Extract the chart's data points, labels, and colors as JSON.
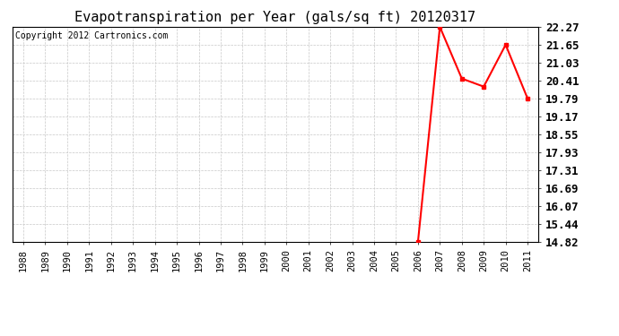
{
  "title": "Evapotranspiration per Year (gals/sq ft) 20120317",
  "copyright_text": "Copyright 2012 Cartronics.com",
  "x_years": [
    1988,
    1989,
    1990,
    1991,
    1992,
    1993,
    1994,
    1995,
    1996,
    1997,
    1998,
    1999,
    2000,
    2001,
    2002,
    2003,
    2004,
    2005,
    2006,
    2007,
    2008,
    2009,
    2010,
    2011
  ],
  "data_x": [
    2006,
    2007,
    2008,
    2009,
    2010,
    2011
  ],
  "data_y": [
    14.82,
    22.27,
    20.48,
    20.2,
    21.65,
    19.79
  ],
  "y_ticks": [
    14.82,
    15.44,
    16.07,
    16.69,
    17.31,
    17.93,
    18.55,
    19.17,
    19.79,
    20.41,
    21.03,
    21.65,
    22.27
  ],
  "xlim_left": 1987.5,
  "xlim_right": 2011.5,
  "ylim_min": 14.82,
  "ylim_max": 22.27,
  "line_color": "#ff0000",
  "marker_color": "#ff0000",
  "bg_color": "#ffffff",
  "grid_color": "#c8c8c8",
  "title_fontsize": 11,
  "copyright_fontsize": 7,
  "tick_fontsize": 7.5,
  "ytick_fontsize": 9
}
